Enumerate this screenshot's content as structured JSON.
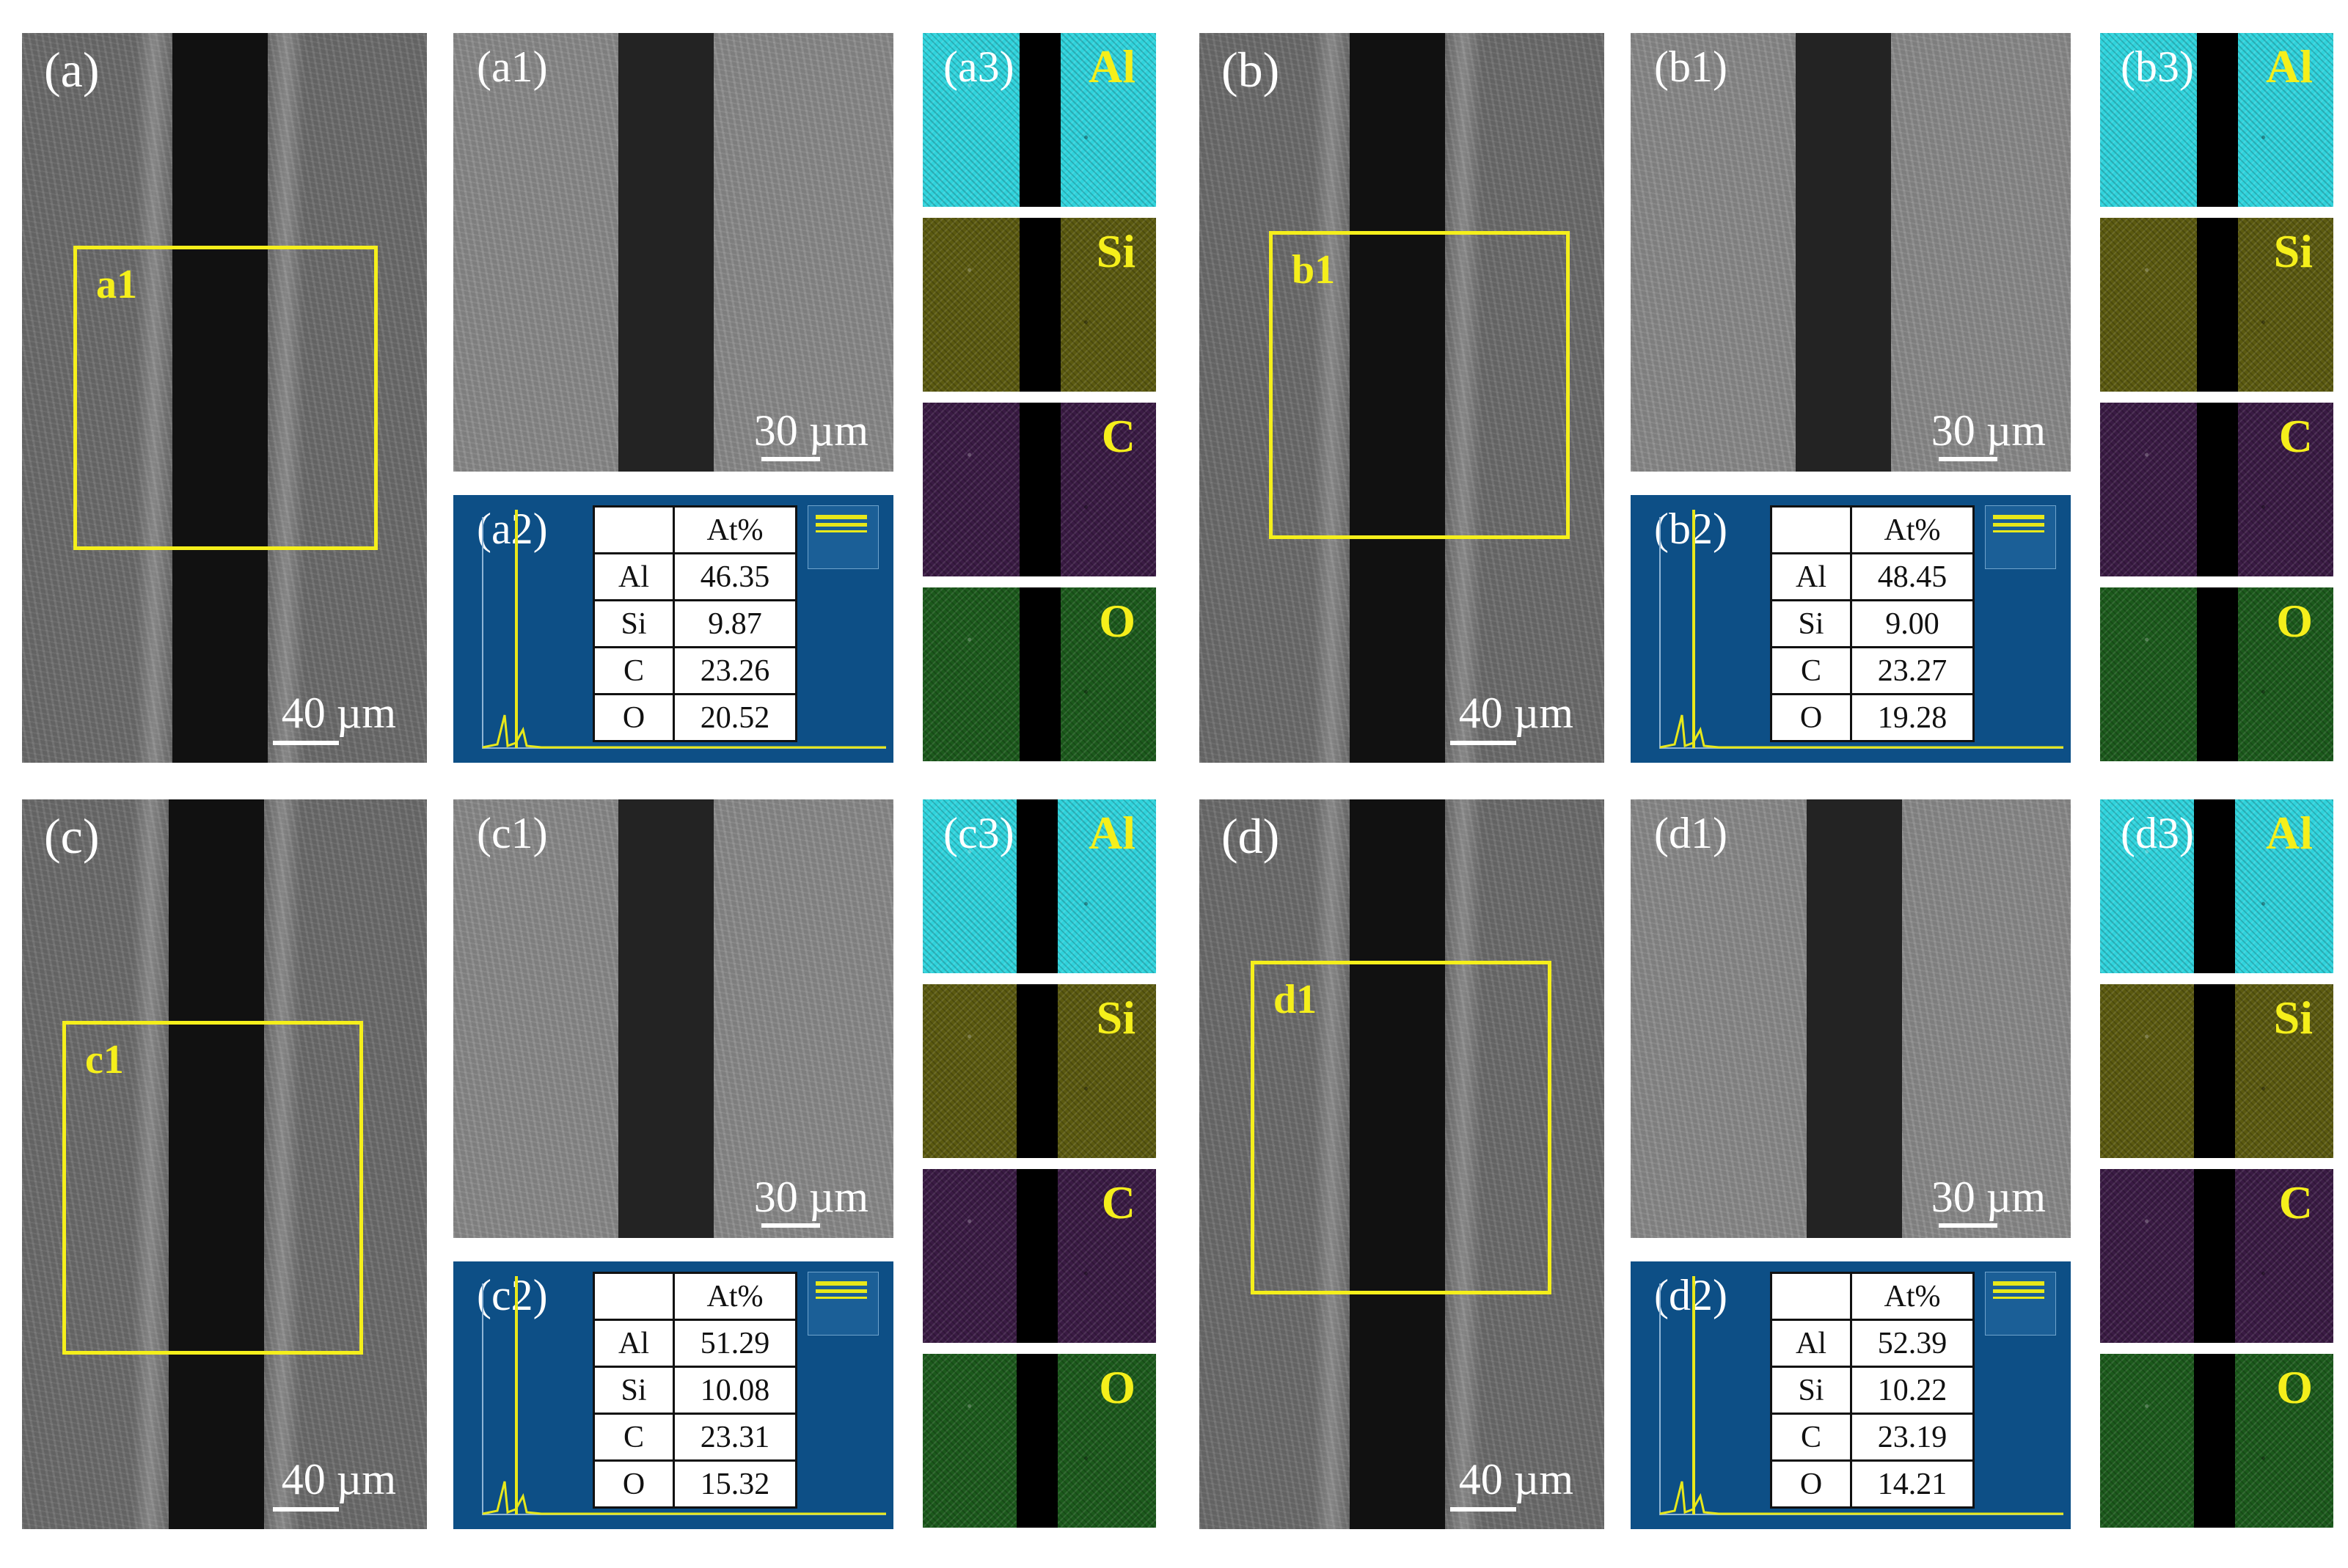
{
  "figure": {
    "quadrants": [
      {
        "id": "a",
        "sem_label": "(a)",
        "sem_scale": "40 µm",
        "roi_label": "a1",
        "zoom_label": "(a1)",
        "zoom_scale": "30 µm",
        "eds_label": "(a2)",
        "maps_label": "(a3)",
        "table_header": "At%",
        "composition": [
          {
            "el": "Al",
            "val": "46.35"
          },
          {
            "el": "Si",
            "val": "9.87"
          },
          {
            "el": "C",
            "val": "23.26"
          },
          {
            "el": "O",
            "val": "20.52"
          }
        ],
        "map_elements": [
          "Al",
          "Si",
          "C",
          "O"
        ]
      },
      {
        "id": "b",
        "sem_label": "(b)",
        "sem_scale": "40 µm",
        "roi_label": "b1",
        "zoom_label": "(b1)",
        "zoom_scale": "30 µm",
        "eds_label": "(b2)",
        "maps_label": "(b3)",
        "table_header": "At%",
        "composition": [
          {
            "el": "Al",
            "val": "48.45"
          },
          {
            "el": "Si",
            "val": "9.00"
          },
          {
            "el": "C",
            "val": "23.27"
          },
          {
            "el": "O",
            "val": "19.28"
          }
        ],
        "map_elements": [
          "Al",
          "Si",
          "C",
          "O"
        ]
      },
      {
        "id": "c",
        "sem_label": "(c)",
        "sem_scale": "40 µm",
        "roi_label": "c1",
        "zoom_label": "(c1)",
        "zoom_scale": "30 µm",
        "eds_label": "(c2)",
        "maps_label": "(c3)",
        "table_header": "At%",
        "composition": [
          {
            "el": "Al",
            "val": "51.29"
          },
          {
            "el": "Si",
            "val": "10.08"
          },
          {
            "el": "C",
            "val": "23.31"
          },
          {
            "el": "O",
            "val": "15.32"
          }
        ],
        "map_elements": [
          "Al",
          "Si",
          "C",
          "O"
        ]
      },
      {
        "id": "d",
        "sem_label": "(d)",
        "sem_scale": "40 µm",
        "roi_label": "d1",
        "zoom_label": "(d1)",
        "zoom_scale": "30 µm",
        "eds_label": "(d2)",
        "maps_label": "(d3)",
        "table_header": "At%",
        "composition": [
          {
            "el": "Al",
            "val": "52.39"
          },
          {
            "el": "Si",
            "val": "10.22"
          },
          {
            "el": "C",
            "val": "23.19"
          },
          {
            "el": "O",
            "val": "14.21"
          }
        ],
        "map_elements": [
          "Al",
          "Si",
          "C",
          "O"
        ]
      }
    ],
    "map_colors": {
      "Al": "#2fd3dc",
      "Si": "#c8c21c",
      "C": "#8a1f8f",
      "O": "#2eb52e"
    },
    "roi_color": "#f5ef1b",
    "eds_background": "#0d4f86",
    "spectrum_color": "#e8e81a"
  }
}
